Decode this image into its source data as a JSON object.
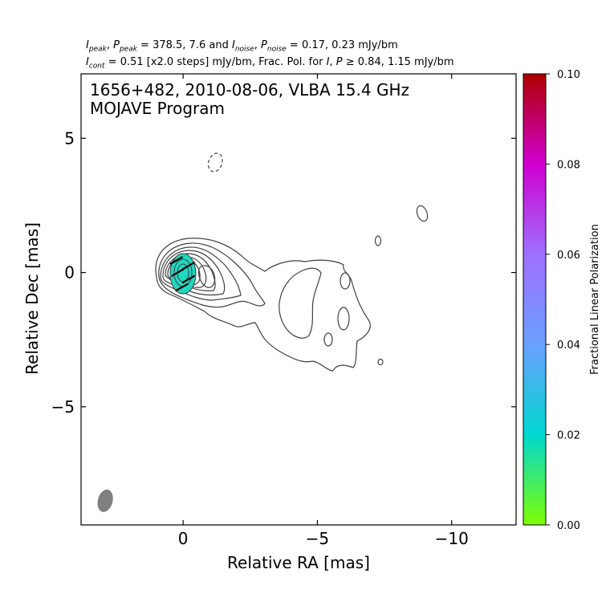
{
  "header": {
    "line1": {
      "peak_label": "I",
      "peak_sub": "peak",
      "ppeak_label": "P",
      "ppeak_sub": "peak",
      "eq1": " = 378.5, 7.6 and ",
      "noise_label": "I",
      "noise_sub": "noise",
      "pnoise_label": "P",
      "pnoise_sub": "noise",
      "eq2": " = 0.17, 0.23 mJy/bm"
    },
    "line2": {
      "cont_label": "I",
      "cont_sub": "cont",
      "text_a": " = 0.51 [x2.0 steps] mJy/bm, Frac. Pol. for ",
      "i_label": "I",
      "text_b": ", ",
      "p_label": "P",
      "text_c": " ≥ 0.84, 1.15 mJy/bm"
    }
  },
  "chart_data": {
    "type": "contour",
    "title_line1": "1656+482, 2010-08-06, VLBA 15.4 GHz",
    "title_line2": "MOJAVE Program",
    "xlabel": "Relative RA [mas]",
    "ylabel": "Relative Dec [mas]",
    "xlim": [
      3.8,
      -12.4
    ],
    "ylim": [
      -9.4,
      7.4
    ],
    "x_ticks": [
      0,
      -5,
      -10
    ],
    "x_tick_labels": [
      "0",
      "−5",
      "−10"
    ],
    "y_ticks": [
      5,
      0,
      -5
    ],
    "y_tick_labels": [
      "5",
      "0",
      "−5"
    ],
    "grid": false,
    "core": {
      "x": 0.0,
      "y": 0.0
    },
    "beam": {
      "x": 2.9,
      "y": -8.5,
      "major": 0.85,
      "minor": 0.55,
      "pa_deg": -15,
      "color": "#808080"
    },
    "contour_color": "#404040",
    "pol_region": {
      "x": 0.0,
      "y": 0.0,
      "rx": 0.5,
      "ry": 0.8,
      "fractional_pol": 0.025,
      "color": "#1ed8c0"
    },
    "evpa_ticks": [
      {
        "x": 0.25,
        "y": 0.45,
        "angle_deg": 30
      },
      {
        "x": -0.2,
        "y": 0.25,
        "angle_deg": 30
      },
      {
        "x": 0.2,
        "y": 0.0,
        "angle_deg": 30
      },
      {
        "x": -0.2,
        "y": -0.25,
        "angle_deg": 30
      },
      {
        "x": 0.05,
        "y": -0.55,
        "angle_deg": 30
      }
    ],
    "colorbar": {
      "label": "Fractional Linear Polarization",
      "min": 0.0,
      "max": 0.1,
      "ticks": [
        0.0,
        0.02,
        0.04,
        0.06,
        0.08,
        0.1
      ],
      "tick_labels": [
        "0.00",
        "0.02",
        "0.04",
        "0.06",
        "0.08",
        "0.10"
      ],
      "colors": [
        "#7fff00",
        "#00d8d0",
        "#6aa0ff",
        "#a070ff",
        "#d000d0",
        "#b00000"
      ]
    },
    "negative_contour": {
      "x": -1.2,
      "y": 4.1,
      "rx": 0.25,
      "ry": 0.35
    }
  }
}
